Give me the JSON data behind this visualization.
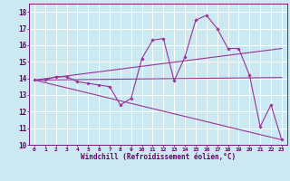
{
  "xlabel": "Windchill (Refroidissement éolien,°C)",
  "bg_color": "#cce8f0",
  "line_color": "#993399",
  "grid_color": "#ffffff",
  "text_color": "#660066",
  "xlim": [
    -0.5,
    23.5
  ],
  "ylim": [
    10,
    18.5
  ],
  "yticks": [
    10,
    11,
    12,
    13,
    14,
    15,
    16,
    17,
    18
  ],
  "xticks": [
    0,
    1,
    2,
    3,
    4,
    5,
    6,
    7,
    8,
    9,
    10,
    11,
    12,
    13,
    14,
    15,
    16,
    17,
    18,
    19,
    20,
    21,
    22,
    23
  ],
  "main_series": {
    "x": [
      0,
      1,
      2,
      3,
      4,
      5,
      6,
      7,
      8,
      9,
      10,
      11,
      12,
      13,
      14,
      15,
      16,
      17,
      18,
      19,
      20,
      21,
      22,
      23
    ],
    "y": [
      13.9,
      13.9,
      14.1,
      14.1,
      13.8,
      13.7,
      13.6,
      13.5,
      12.4,
      12.8,
      15.2,
      16.3,
      16.4,
      13.85,
      15.3,
      17.5,
      17.8,
      17.0,
      15.8,
      15.8,
      14.2,
      11.1,
      12.4,
      10.3
    ]
  },
  "trend_lines": [
    {
      "x": [
        0,
        23
      ],
      "y": [
        13.9,
        14.05
      ]
    },
    {
      "x": [
        0,
        23
      ],
      "y": [
        13.9,
        15.8
      ]
    },
    {
      "x": [
        0,
        23
      ],
      "y": [
        13.9,
        10.3
      ]
    }
  ]
}
